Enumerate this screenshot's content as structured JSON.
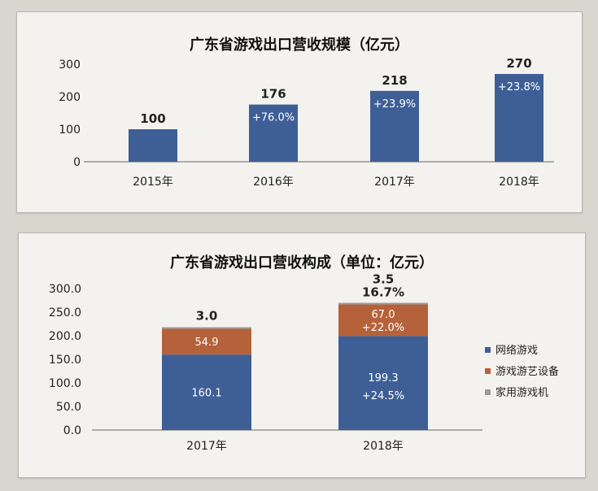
{
  "chart_data": [
    {
      "type": "bar",
      "title": "广东省游戏出口营收规模（亿元）",
      "categories": [
        "2015年",
        "2016年",
        "2017年",
        "2018年"
      ],
      "values": [
        100,
        176,
        218,
        270
      ],
      "value_labels": [
        "100",
        "176",
        "218",
        "270"
      ],
      "growth_labels": [
        "",
        "+76.0%",
        "+23.9%",
        "+23.8%"
      ],
      "yticks": [
        "0",
        "100",
        "200",
        "300"
      ],
      "ylim": [
        0,
        300
      ],
      "grid": false,
      "colors": {
        "bar": "#3e5f95"
      }
    },
    {
      "type": "bar",
      "stacked": true,
      "title": "广东省游戏出口营收构成（单位：亿元）",
      "categories": [
        "2017年",
        "2018年"
      ],
      "series": [
        {
          "name": "网络游戏",
          "values": [
            160.1,
            199.3
          ],
          "labels": [
            "160.1",
            "199.3"
          ],
          "color": "#3e5f95"
        },
        {
          "name": "游戏游艺设备",
          "values": [
            54.9,
            67.0
          ],
          "labels": [
            "54.9",
            "67.0"
          ],
          "color": "#b5623a"
        },
        {
          "name": "家用游戏机",
          "values": [
            3.0,
            3.5
          ],
          "labels": [
            "3.0",
            "3.5"
          ],
          "color": "#9b9a96"
        }
      ],
      "growth_labels": {
        "2018年": {
          "网络游戏": "+24.5%",
          "游戏游艺设备": "+22.0%",
          "家用游戏机": "16.7%"
        }
      },
      "yticks": [
        "0.0",
        "50.0",
        "100.0",
        "150.0",
        "200.0",
        "250.0",
        "300.0"
      ],
      "ylim": [
        0,
        300
      ],
      "grid": false,
      "legend_position": "right"
    }
  ]
}
